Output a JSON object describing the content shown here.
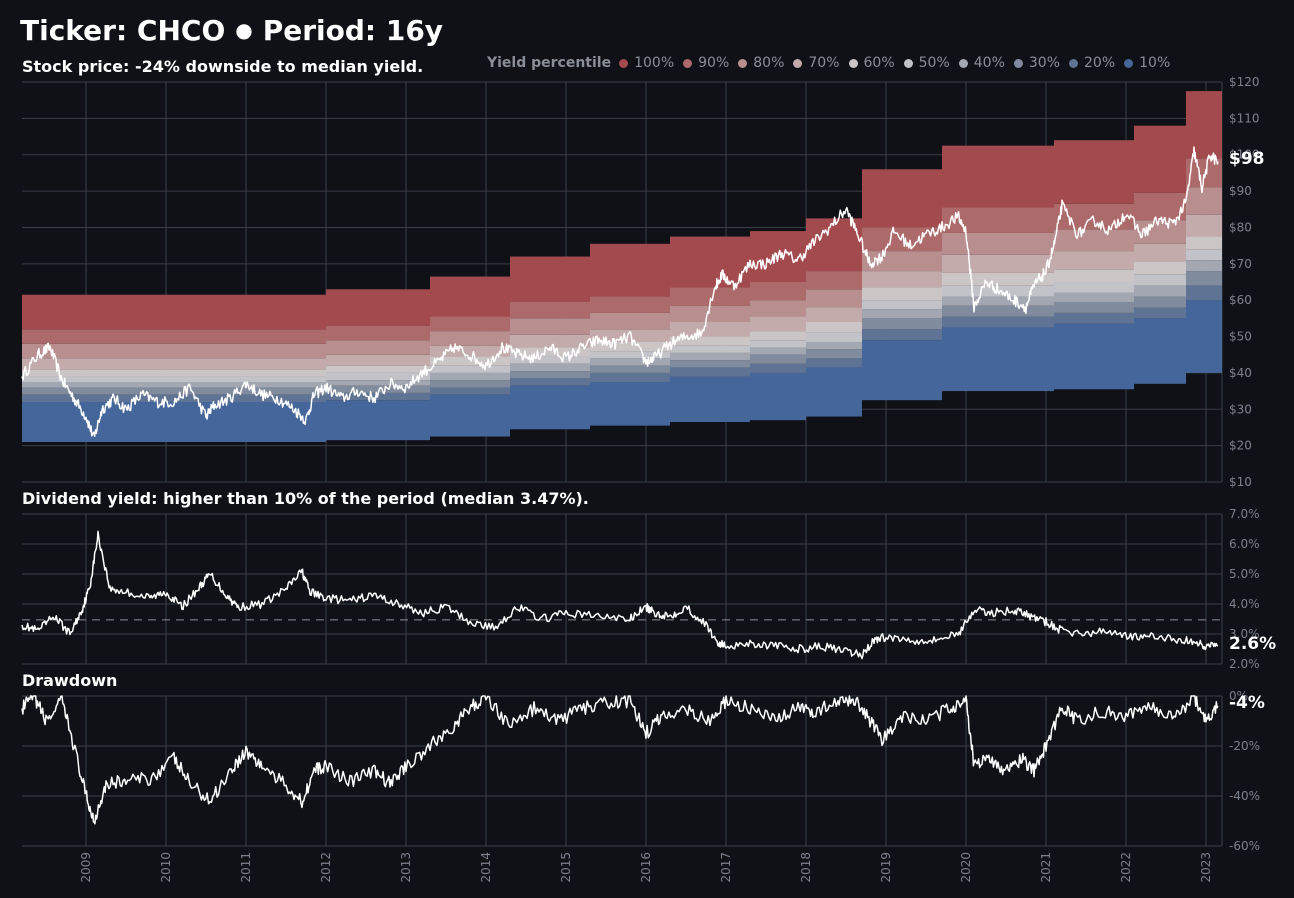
{
  "header": {
    "ticker_label": "Ticker: CHCO",
    "separator": "●",
    "period_label": "Period: 16y"
  },
  "legend": {
    "title": "Yield percentile",
    "items": [
      {
        "label": "100%",
        "color": "#a24a4d"
      },
      {
        "label": "90%",
        "color": "#ad6a6b"
      },
      {
        "label": "80%",
        "color": "#b88e8f"
      },
      {
        "label": "70%",
        "color": "#c4abab"
      },
      {
        "label": "60%",
        "color": "#cbc5c5"
      },
      {
        "label": "50%",
        "color": "#c2c3c8"
      },
      {
        "label": "40%",
        "color": "#a2a7b2"
      },
      {
        "label": "30%",
        "color": "#808b9d"
      },
      {
        "label": "20%",
        "color": "#5f7394"
      },
      {
        "label": "10%",
        "color": "#44669a"
      }
    ]
  },
  "panels": {
    "price_title": "Stock price: -24% downside to median yield.",
    "yield_title": "Dividend yield: higher than 10% of the period (median 3.47%).",
    "drawdown_title": "Drawdown",
    "price_last": "$98",
    "yield_last": "2.6%",
    "drawdown_last": "-4%"
  },
  "chart_data": [
    {
      "type": "area",
      "name": "stock-price",
      "title": "Stock price: -24% downside to median yield.",
      "ylim": [
        10,
        120
      ],
      "yticks": [
        "$10",
        "$20",
        "$30",
        "$40",
        "$50",
        "$60",
        "$70",
        "$80",
        "$90",
        "$100",
        "$110",
        "$120"
      ],
      "ytick_values": [
        10,
        20,
        30,
        40,
        50,
        60,
        70,
        80,
        90,
        100,
        110,
        120
      ],
      "xlim": [
        2008.2,
        2023.2
      ],
      "band_steps": [
        {
          "start": 2008.2,
          "end": 2012.0,
          "bounds": [
            21,
            32,
            34,
            36,
            37.5,
            39,
            41,
            44,
            48,
            52,
            61.5
          ]
        },
        {
          "start": 2012.0,
          "end": 2013.3,
          "bounds": [
            21.5,
            32.5,
            34.5,
            36.5,
            38,
            40,
            42,
            45,
            49,
            53,
            63
          ]
        },
        {
          "start": 2013.3,
          "end": 2014.3,
          "bounds": [
            22.5,
            34,
            36,
            38,
            40,
            42,
            44.5,
            47.5,
            51.5,
            55.5,
            66.5
          ]
        },
        {
          "start": 2014.3,
          "end": 2015.3,
          "bounds": [
            24.5,
            36.5,
            38.5,
            40.5,
            42.5,
            44.5,
            47,
            50.5,
            55,
            59.5,
            72
          ]
        },
        {
          "start": 2015.3,
          "end": 2016.3,
          "bounds": [
            25.5,
            37.5,
            40,
            42,
            44,
            46,
            48.5,
            52,
            56.5,
            61,
            75.5
          ]
        },
        {
          "start": 2016.3,
          "end": 2017.3,
          "bounds": [
            26.5,
            39,
            41.5,
            43.5,
            45.5,
            47.5,
            50,
            54,
            58.5,
            63.5,
            77.5
          ]
        },
        {
          "start": 2017.3,
          "end": 2018.0,
          "bounds": [
            27,
            40,
            42.5,
            45,
            47,
            49,
            51.5,
            55.5,
            60,
            65,
            79
          ]
        },
        {
          "start": 2018.0,
          "end": 2018.7,
          "bounds": [
            28,
            41.5,
            44,
            46.5,
            48.5,
            51,
            54,
            58,
            63,
            68,
            82.5
          ]
        },
        {
          "start": 2018.7,
          "end": 2019.7,
          "bounds": [
            32.5,
            49,
            52,
            55,
            57.5,
            60,
            63.5,
            68,
            73.5,
            80,
            96
          ]
        },
        {
          "start": 2019.7,
          "end": 2021.1,
          "bounds": [
            35,
            52.5,
            55.5,
            58.5,
            61,
            64,
            67.5,
            72.5,
            78.5,
            85.5,
            102.5
          ]
        },
        {
          "start": 2021.1,
          "end": 2022.1,
          "bounds": [
            35.5,
            53.5,
            56.5,
            59.5,
            62,
            65,
            68.5,
            73.5,
            79.5,
            86.5,
            104
          ]
        },
        {
          "start": 2022.1,
          "end": 2022.75,
          "bounds": [
            37,
            55,
            58,
            61,
            64,
            67,
            70.5,
            75.5,
            82,
            89.5,
            108
          ]
        },
        {
          "start": 2022.75,
          "end": 2023.2,
          "bounds": [
            40,
            60,
            64,
            68,
            71,
            74,
            77.5,
            83.5,
            91,
            99,
            117.5
          ]
        }
      ],
      "series": [
        {
          "name": "Stock price",
          "x": [
            2008.2,
            2008.4,
            2008.55,
            2008.7,
            2008.85,
            2009.0,
            2009.1,
            2009.2,
            2009.35,
            2009.5,
            2009.7,
            2009.9,
            2010.1,
            2010.3,
            2010.5,
            2010.6,
            2010.8,
            2011.0,
            2011.2,
            2011.4,
            2011.6,
            2011.75,
            2011.85,
            2012.0,
            2012.2,
            2012.4,
            2012.6,
            2012.8,
            2013.0,
            2013.2,
            2013.4,
            2013.6,
            2013.8,
            2014.0,
            2014.2,
            2014.4,
            2014.6,
            2014.8,
            2015.0,
            2015.2,
            2015.4,
            2015.6,
            2015.8,
            2016.0,
            2016.1,
            2016.3,
            2016.5,
            2016.7,
            2016.85,
            2016.95,
            2017.1,
            2017.3,
            2017.5,
            2017.7,
            2017.9,
            2018.1,
            2018.3,
            2018.5,
            2018.65,
            2018.8,
            2018.95,
            2019.1,
            2019.3,
            2019.5,
            2019.7,
            2019.9,
            2020.0,
            2020.1,
            2020.25,
            2020.4,
            2020.6,
            2020.75,
            2020.85,
            2021.0,
            2021.1,
            2021.2,
            2021.4,
            2021.6,
            2021.8,
            2022.0,
            2022.2,
            2022.4,
            2022.6,
            2022.75,
            2022.85,
            2022.95,
            2023.05,
            2023.15
          ],
          "values": [
            39,
            45,
            47,
            38,
            33,
            28,
            22,
            30,
            33,
            30,
            34,
            32,
            32,
            36,
            28,
            31,
            33,
            37,
            34,
            33,
            30,
            27,
            34,
            36,
            33,
            35,
            33,
            37,
            36,
            40,
            43,
            47,
            45,
            42,
            47,
            45,
            44,
            47,
            44,
            47,
            49,
            48,
            50,
            43,
            44,
            48,
            50,
            51,
            63,
            67,
            64,
            70,
            70,
            73,
            71,
            76,
            80,
            85,
            78,
            70,
            72,
            79,
            75,
            78,
            80,
            83,
            79,
            58,
            65,
            63,
            60,
            58,
            64,
            68,
            75,
            86,
            78,
            82,
            79,
            84,
            78,
            82,
            81,
            87,
            101,
            91,
            100,
            98
          ]
        }
      ]
    },
    {
      "type": "line",
      "name": "dividend-yield",
      "title": "Dividend yield: higher than 10% of the period (median 3.47%).",
      "ylim": [
        2.0,
        7.0
      ],
      "yticks": [
        "2.0%",
        "3.0%",
        "4.0%",
        "5.0%",
        "6.0%",
        "7.0%"
      ],
      "ytick_values": [
        2,
        3,
        4,
        5,
        6,
        7
      ],
      "median": 3.47,
      "xlim": [
        2008.2,
        2023.2
      ],
      "series": [
        {
          "name": "Dividend yield",
          "x": [
            2008.2,
            2008.4,
            2008.6,
            2008.8,
            2008.95,
            2009.05,
            2009.15,
            2009.3,
            2009.5,
            2009.8,
            2010.0,
            2010.2,
            2010.4,
            2010.55,
            2010.75,
            2010.9,
            2011.2,
            2011.5,
            2011.7,
            2011.8,
            2012.0,
            2012.3,
            2012.6,
            2012.9,
            2013.2,
            2013.5,
            2013.8,
            2014.1,
            2014.4,
            2014.7,
            2015.0,
            2015.4,
            2015.8,
            2016.0,
            2016.1,
            2016.3,
            2016.5,
            2016.75,
            2016.9,
            2017.0,
            2017.3,
            2017.6,
            2017.9,
            2018.2,
            2018.5,
            2018.7,
            2018.85,
            2019.0,
            2019.3,
            2019.6,
            2019.9,
            2020.1,
            2020.3,
            2020.6,
            2020.8,
            2021.0,
            2021.2,
            2021.5,
            2021.8,
            2022.1,
            2022.4,
            2022.7,
            2022.9,
            2023.0,
            2023.15
          ],
          "values": [
            3.3,
            3.1,
            3.6,
            3.0,
            3.8,
            4.6,
            6.3,
            4.5,
            4.4,
            4.2,
            4.4,
            3.9,
            4.5,
            5.0,
            4.3,
            3.9,
            4.0,
            4.5,
            5.1,
            4.4,
            4.2,
            4.1,
            4.3,
            4.0,
            3.7,
            3.9,
            3.4,
            3.2,
            3.9,
            3.5,
            3.7,
            3.6,
            3.5,
            3.9,
            3.7,
            3.6,
            3.9,
            3.3,
            2.7,
            2.6,
            2.7,
            2.6,
            2.5,
            2.6,
            2.4,
            2.3,
            2.8,
            2.9,
            2.8,
            2.8,
            3.0,
            3.8,
            3.7,
            3.8,
            3.6,
            3.4,
            3.1,
            3.0,
            3.1,
            2.9,
            2.9,
            2.8,
            2.7,
            2.6,
            2.6
          ]
        }
      ]
    },
    {
      "type": "line",
      "name": "drawdown",
      "title": "Drawdown",
      "ylim": [
        -60,
        0
      ],
      "yticks": [
        "-60%",
        "-40%",
        "-20%",
        "0%"
      ],
      "ytick_values": [
        -60,
        -40,
        -20,
        0
      ],
      "xlim": [
        2008.2,
        2023.2
      ],
      "series": [
        {
          "name": "Drawdown",
          "x": [
            2008.2,
            2008.35,
            2008.5,
            2008.7,
            2008.85,
            2009.0,
            2009.1,
            2009.25,
            2009.5,
            2009.8,
            2010.1,
            2010.3,
            2010.55,
            2010.8,
            2011.0,
            2011.2,
            2011.5,
            2011.7,
            2011.85,
            2012.0,
            2012.3,
            2012.6,
            2012.8,
            2013.0,
            2013.3,
            2013.6,
            2013.8,
            2014.0,
            2014.3,
            2014.6,
            2014.9,
            2015.2,
            2015.5,
            2015.8,
            2016.0,
            2016.2,
            2016.5,
            2016.8,
            2017.0,
            2017.3,
            2017.6,
            2017.9,
            2018.1,
            2018.4,
            2018.6,
            2018.8,
            2018.95,
            2019.2,
            2019.5,
            2019.8,
            2020.0,
            2020.1,
            2020.3,
            2020.5,
            2020.7,
            2020.85,
            2021.0,
            2021.2,
            2021.4,
            2021.7,
            2022.0,
            2022.3,
            2022.6,
            2022.85,
            2023.0,
            2023.15
          ],
          "values": [
            -5,
            0,
            -10,
            -2,
            -20,
            -40,
            -50,
            -35,
            -34,
            -33,
            -25,
            -35,
            -42,
            -30,
            -22,
            -28,
            -36,
            -42,
            -30,
            -28,
            -34,
            -30,
            -35,
            -28,
            -20,
            -12,
            -5,
            0,
            -12,
            -5,
            -10,
            -5,
            -3,
            -2,
            -15,
            -8,
            -5,
            -10,
            -2,
            -5,
            -10,
            -5,
            -6,
            -3,
            -1,
            -10,
            -18,
            -8,
            -10,
            -5,
            -1,
            -28,
            -25,
            -30,
            -25,
            -30,
            -20,
            -5,
            -10,
            -6,
            -8,
            -4,
            -8,
            -1,
            -10,
            -4
          ]
        }
      ]
    }
  ],
  "x_axis": {
    "ticks": [
      "2009",
      "2010",
      "2011",
      "2012",
      "2013",
      "2014",
      "2015",
      "2016",
      "2017",
      "2018",
      "2019",
      "2020",
      "2021",
      "2022",
      "2023"
    ]
  }
}
